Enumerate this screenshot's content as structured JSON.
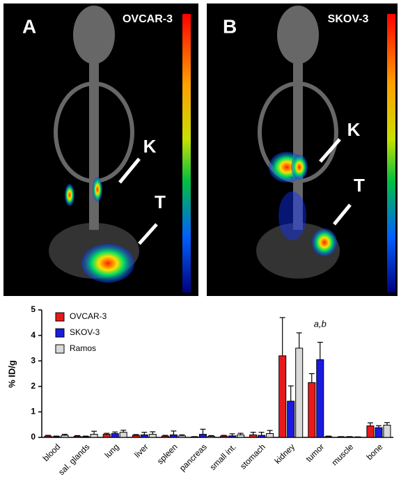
{
  "panels": [
    {
      "letter": "A",
      "title": "OVCAR-3",
      "labels": [
        "K",
        "T"
      ]
    },
    {
      "letter": "B",
      "title": "SKOV-3",
      "labels": [
        "K",
        "T"
      ]
    }
  ],
  "chart_data": {
    "type": "bar",
    "y_label": "% ID/g",
    "annotation": "a,b",
    "categories": [
      "blood",
      "sal. glands",
      "lung",
      "liver",
      "spleen",
      "pancreas",
      "small int.",
      "stomach",
      "kidney",
      "tumor",
      "muscle",
      "bone"
    ],
    "series": [
      {
        "name": "OVCAR-3",
        "color": "#e8191c",
        "values": [
          0.05,
          0.04,
          0.12,
          0.08,
          0.05,
          0.02,
          0.05,
          0.1,
          3.2,
          2.15,
          0.02,
          0.45
        ],
        "errors": [
          0.03,
          0.03,
          0.04,
          0.03,
          0.03,
          0.01,
          0.03,
          0.1,
          1.5,
          0.35,
          0.01,
          0.12
        ]
      },
      {
        "name": "SKOV-3",
        "color": "#1a1ae0",
        "values": [
          0.03,
          0.03,
          0.15,
          0.1,
          0.1,
          0.12,
          0.06,
          0.08,
          1.42,
          3.05,
          0.02,
          0.38
        ],
        "errors": [
          0.02,
          0.02,
          0.06,
          0.1,
          0.15,
          0.2,
          0.08,
          0.12,
          0.6,
          0.68,
          0.01,
          0.08
        ]
      },
      {
        "name": "Ramos",
        "color": "#d9d9d9",
        "values": [
          0.08,
          0.12,
          0.2,
          0.12,
          0.06,
          0.04,
          0.1,
          0.15,
          3.5,
          0.03,
          0.01,
          0.48
        ],
        "errors": [
          0.04,
          0.12,
          0.08,
          0.1,
          0.04,
          0.03,
          0.06,
          0.12,
          0.6,
          0.02,
          0.01,
          0.1
        ]
      }
    ],
    "ylim": [
      0,
      5
    ],
    "yticks": [
      0,
      1,
      2,
      3,
      4,
      5
    ]
  }
}
